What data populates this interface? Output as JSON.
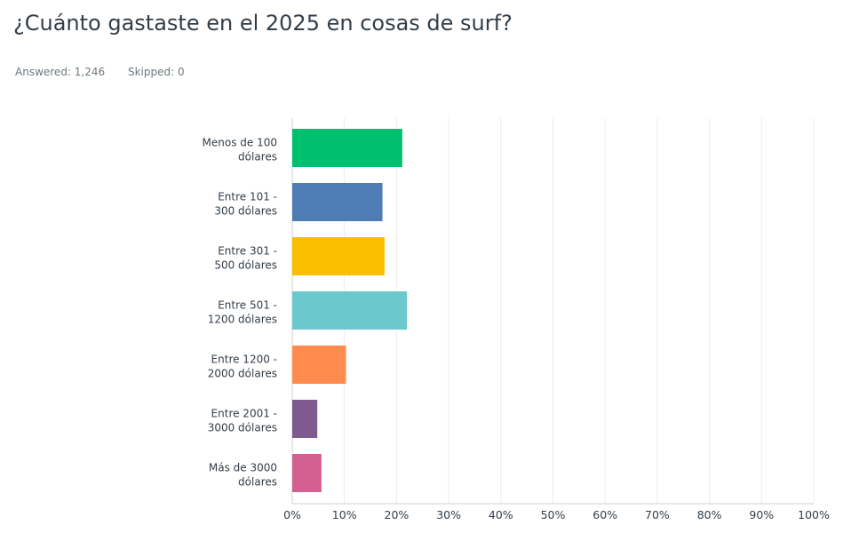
{
  "header": {
    "title": "¿Cuánto gastaste en el 2025 en cosas de surf?",
    "answered": "Answered: 1,246",
    "skipped": "Skipped: 0"
  },
  "chart_data": {
    "type": "bar",
    "orientation": "horizontal",
    "title": "¿Cuánto gastaste en el 2025 en cosas de surf?",
    "categories": [
      [
        "Menos de 100",
        "dólares"
      ],
      [
        "Entre 101 -",
        "300 dólares"
      ],
      [
        "Entre 301 -",
        "500 dólares"
      ],
      [
        "Entre 501 -",
        "1200 dólares"
      ],
      [
        "Entre 1200 -",
        "2000 dólares"
      ],
      [
        "Entre 2001 -",
        "3000 dólares"
      ],
      [
        "Más de 3000",
        "dólares"
      ]
    ],
    "values": [
      21.1,
      17.3,
      17.7,
      22.0,
      10.3,
      4.8,
      5.6
    ],
    "colors": [
      "#00bf6f",
      "#507cb6",
      "#f9be00",
      "#6bc8cd",
      "#ff8b4f",
      "#7f5a8e",
      "#d25f90"
    ],
    "xlim": [
      0,
      100
    ],
    "xticks": [
      "0%",
      "10%",
      "20%",
      "30%",
      "40%",
      "50%",
      "60%",
      "70%",
      "80%",
      "90%",
      "100%"
    ],
    "grid": true,
    "xlabel": "",
    "ylabel": ""
  }
}
